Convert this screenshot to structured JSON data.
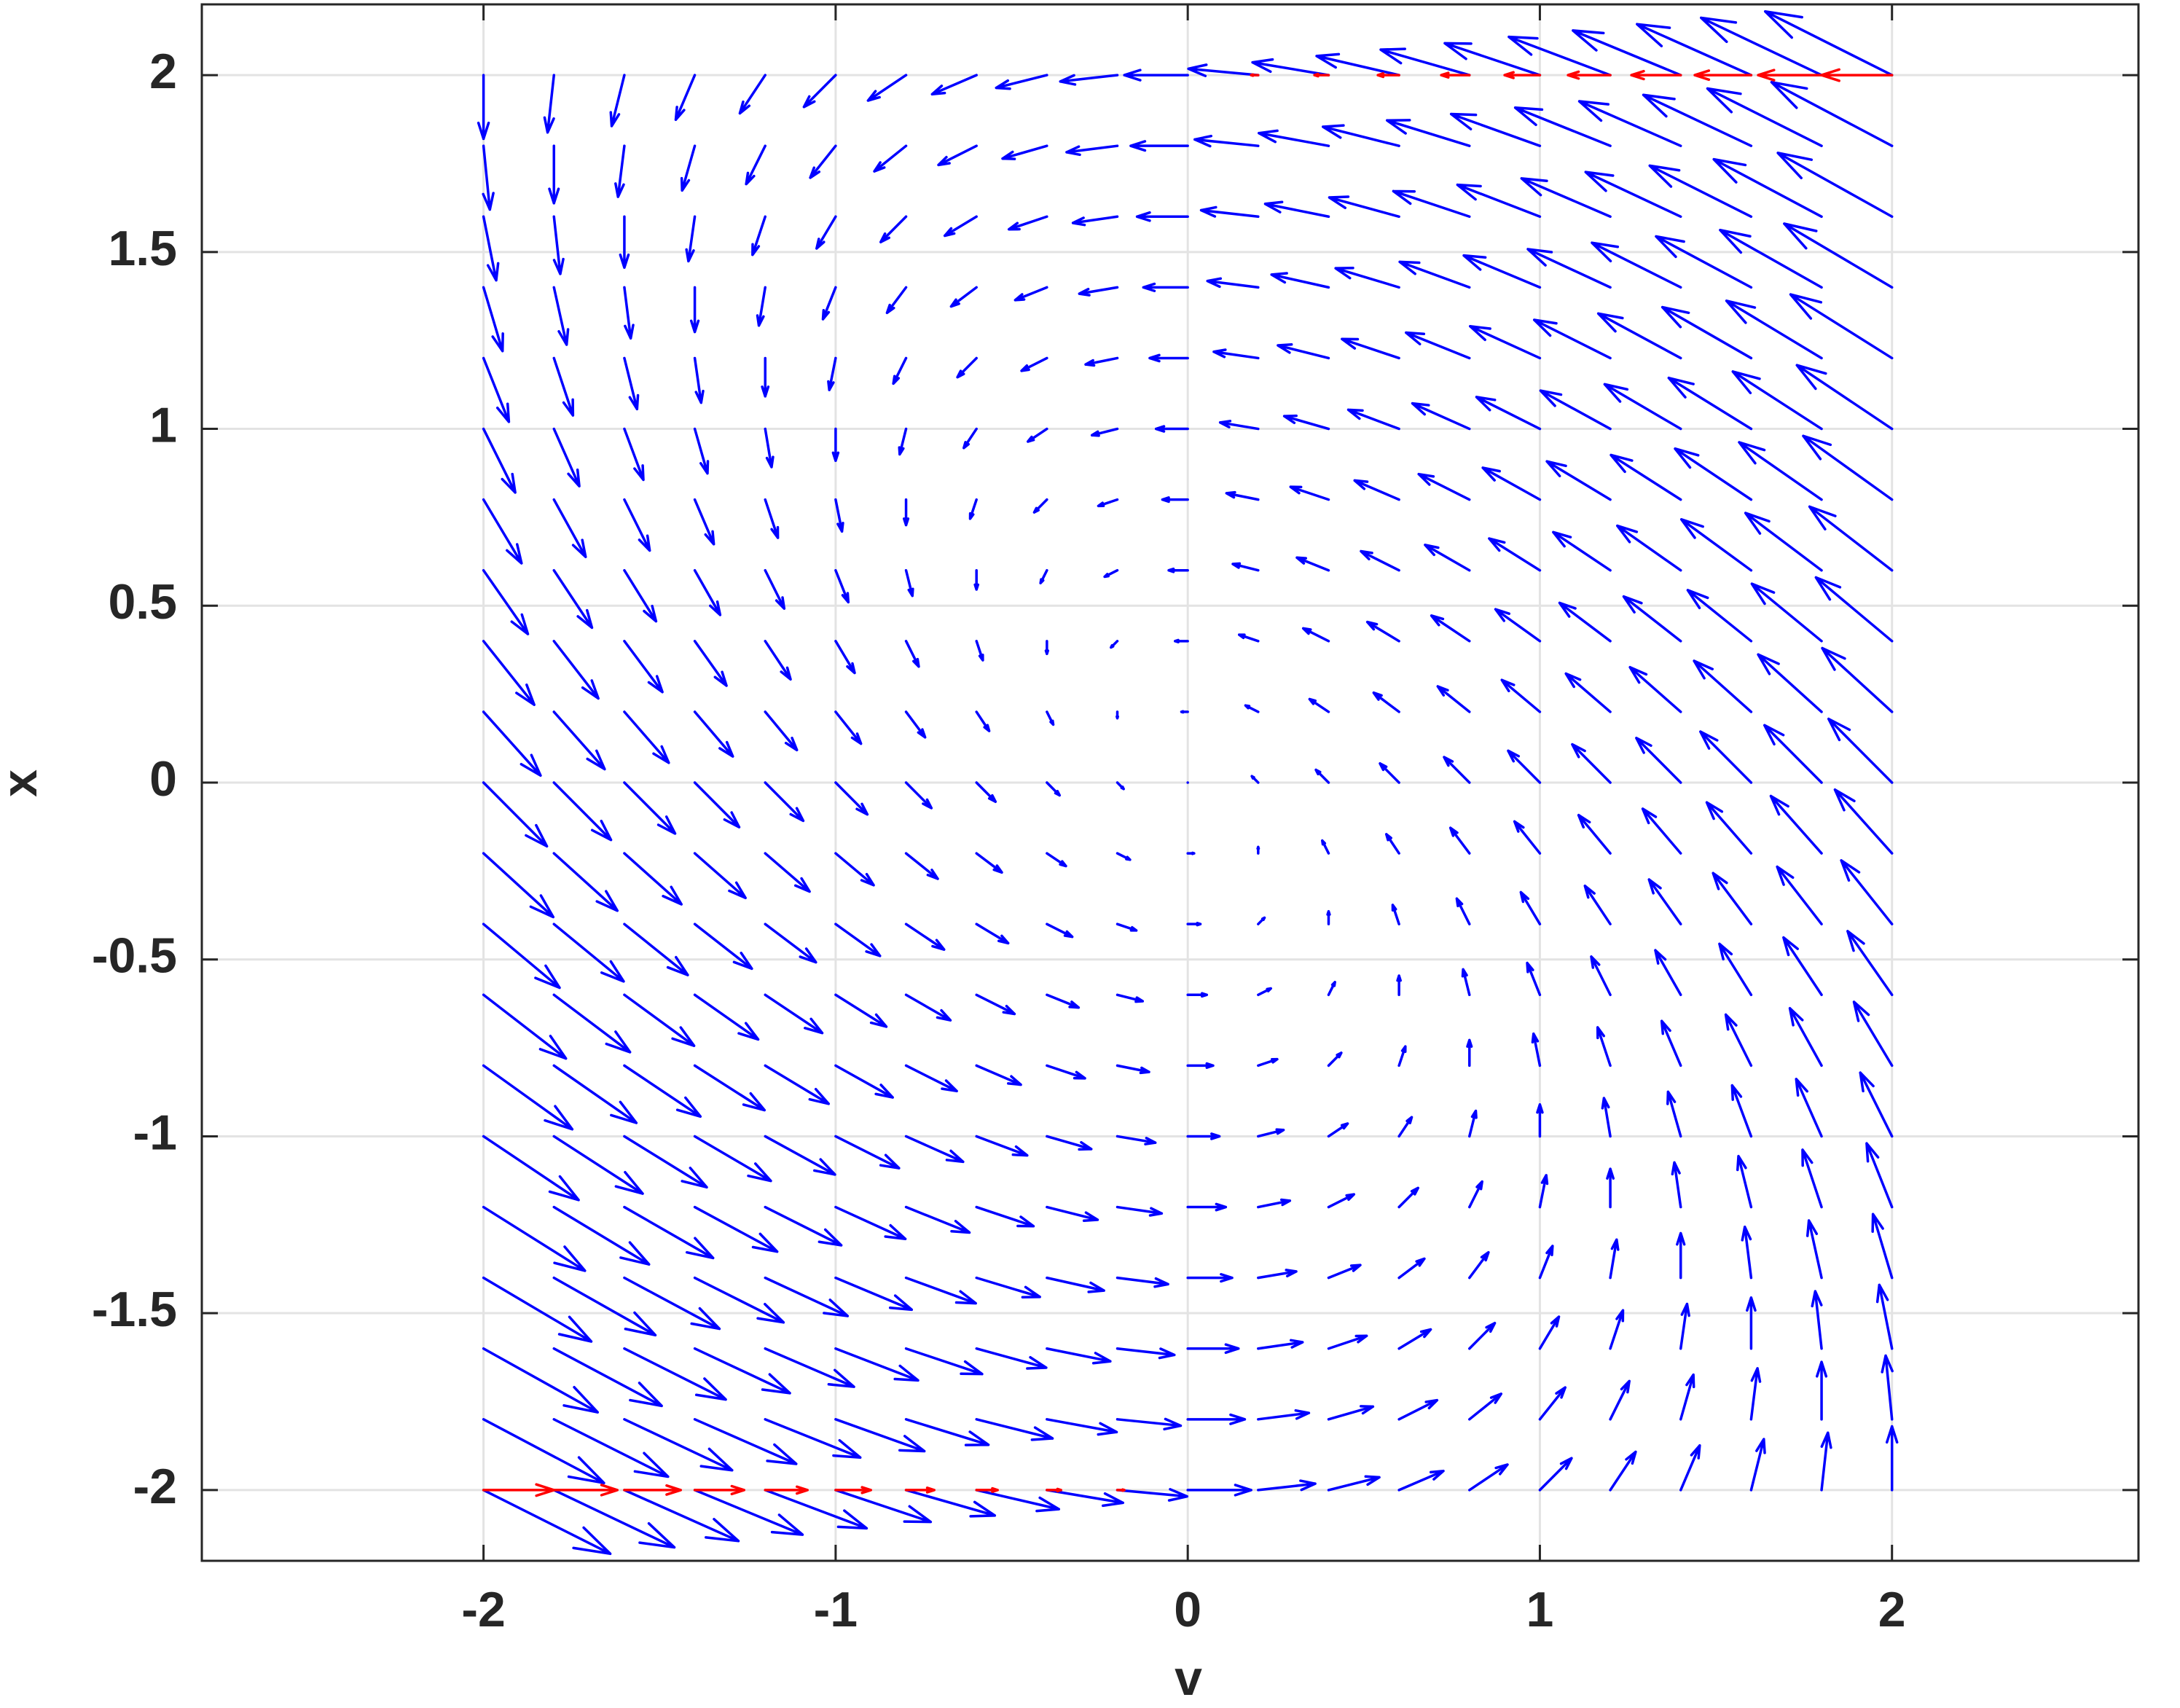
{
  "chart_data": {
    "type": "quiver",
    "xlabel": "v",
    "ylabel": "x",
    "xlim": [
      -2.8,
      2.7
    ],
    "ylim": [
      -2.2,
      2.2
    ],
    "xticks": [
      -2,
      -1,
      0,
      1,
      2
    ],
    "yticks": [
      -2,
      -1.5,
      -1,
      -0.5,
      0,
      0.5,
      1,
      1.5,
      2
    ],
    "grid": true,
    "series": [
      {
        "color": "#0000ff",
        "v": [
          -2,
          -1.8,
          -1.6,
          -1.4,
          -1.2,
          -1,
          -0.8,
          -0.6,
          -0.4,
          -0.2,
          0,
          0.2,
          0.4,
          0.6,
          0.8,
          1,
          1.2,
          1.4,
          1.6,
          1.8,
          2
        ],
        "x": [
          -2,
          -1.8,
          -1.6,
          -1.4,
          -1.2,
          -1,
          -0.8,
          -0.6,
          -0.4,
          -0.2,
          0,
          0.2,
          0.4,
          0.6,
          0.8,
          1,
          1.2,
          1.4,
          1.6,
          1.8,
          2
        ],
        "u": [
          [
            4,
            3.8,
            3.6,
            3.4,
            3.2,
            3,
            2.8,
            2.6,
            2.4,
            2.2,
            2,
            1.8,
            1.6,
            1.4,
            1.2,
            1,
            0.8,
            0.6,
            0.4,
            0.2,
            0
          ],
          [
            3.8,
            3.6,
            3.4,
            3.2,
            3,
            2.8,
            2.6,
            2.4,
            2.2,
            2,
            1.8,
            1.6,
            1.4,
            1.2,
            1,
            0.8,
            0.6,
            0.4,
            0.2,
            0,
            -0.2
          ],
          [
            3.6,
            3.4,
            3.2,
            3,
            2.8,
            2.6,
            2.4,
            2.2,
            2,
            1.8,
            1.6,
            1.4,
            1.2,
            1,
            0.8,
            0.6,
            0.4,
            0.2,
            0,
            -0.2,
            -0.4
          ],
          [
            3.4,
            3.2,
            3,
            2.8,
            2.6,
            2.4,
            2.2,
            2,
            1.8,
            1.6,
            1.4,
            1.2,
            1,
            0.8,
            0.6,
            0.4,
            0.2,
            0,
            -0.2,
            -0.4,
            -0.6
          ],
          [
            3.2,
            3,
            2.8,
            2.6,
            2.4,
            2.2,
            2,
            1.8,
            1.6,
            1.4,
            1.2,
            1,
            0.8,
            0.6,
            0.4,
            0.2,
            0,
            -0.2,
            -0.4,
            -0.6,
            -0.8
          ],
          [
            3,
            2.8,
            2.6,
            2.4,
            2.2,
            2,
            1.8,
            1.6,
            1.4,
            1.2,
            1,
            0.8,
            0.6,
            0.4,
            0.2,
            0,
            -0.2,
            -0.4,
            -0.6,
            -0.8,
            -1
          ],
          [
            2.8,
            2.6,
            2.4,
            2.2,
            2,
            1.8,
            1.6,
            1.4,
            1.2,
            1,
            0.8,
            0.6,
            0.4,
            0.2,
            0,
            -0.2,
            -0.4,
            -0.6,
            -0.8,
            -1,
            -1.2
          ],
          [
            2.6,
            2.4,
            2.2,
            2,
            1.8,
            1.6,
            1.4,
            1.2,
            1,
            0.8,
            0.6,
            0.4,
            0.2,
            0,
            -0.2,
            -0.4,
            -0.6,
            -0.8,
            -1,
            -1.2,
            -1.4
          ],
          [
            2.4,
            2.2,
            2,
            1.8,
            1.6,
            1.4,
            1.2,
            1,
            0.8,
            0.6,
            0.4,
            0.2,
            0,
            -0.2,
            -0.4,
            -0.6,
            -0.8,
            -1,
            -1.2,
            -1.4,
            -1.6
          ],
          [
            2.2,
            2,
            1.8,
            1.6,
            1.4,
            1.2,
            1,
            0.8,
            0.6,
            0.4,
            0.2,
            0,
            -0.2,
            -0.4,
            -0.6,
            -0.8,
            -1,
            -1.2,
            -1.4,
            -1.6,
            -1.8
          ],
          [
            2,
            1.8,
            1.6,
            1.4,
            1.2,
            1,
            0.8,
            0.6,
            0.4,
            0.2,
            0,
            -0.2,
            -0.4,
            -0.6,
            -0.8,
            -1,
            -1.2,
            -1.4,
            -1.6,
            -1.8,
            -2
          ],
          [
            1.8,
            1.6,
            1.4,
            1.2,
            1,
            0.8,
            0.6,
            0.4,
            0.2,
            0,
            -0.2,
            -0.4,
            -0.6,
            -0.8,
            -1,
            -1.2,
            -1.4,
            -1.6,
            -1.8,
            -2,
            -2.2
          ],
          [
            1.6,
            1.4,
            1.2,
            1,
            0.8,
            0.6,
            0.4,
            0.2,
            0,
            -0.2,
            -0.4,
            -0.6,
            -0.8,
            -1,
            -1.2,
            -1.4,
            -1.6,
            -1.8,
            -2,
            -2.2,
            -2.4
          ],
          [
            1.4,
            1.2,
            1,
            0.8,
            0.6,
            0.4,
            0.2,
            0,
            -0.2,
            -0.4,
            -0.6,
            -0.8,
            -1,
            -1.2,
            -1.4,
            -1.6,
            -1.8,
            -2,
            -2.2,
            -2.4,
            -2.6
          ],
          [
            1.2,
            1,
            0.8,
            0.6,
            0.4,
            0.2,
            0,
            -0.2,
            -0.4,
            -0.6,
            -0.8,
            -1,
            -1.2,
            -1.4,
            -1.6,
            -1.8,
            -2,
            -2.2,
            -2.4,
            -2.6,
            -2.8
          ],
          [
            1,
            0.8,
            0.6,
            0.4,
            0.2,
            0,
            -0.2,
            -0.4,
            -0.6,
            -0.8,
            -1,
            -1.2,
            -1.4,
            -1.6,
            -1.8,
            -2,
            -2.2,
            -2.4,
            -2.6,
            -2.8,
            -3
          ],
          [
            0.8,
            0.6,
            0.4,
            0.2,
            0,
            -0.2,
            -0.4,
            -0.6,
            -0.8,
            -1,
            -1.2,
            -1.4,
            -1.6,
            -1.8,
            -2,
            -2.2,
            -2.4,
            -2.6,
            -2.8,
            -3,
            -3.2
          ],
          [
            0.6,
            0.4,
            0.2,
            0,
            -0.2,
            -0.4,
            -0.6,
            -0.8,
            -1,
            -1.2,
            -1.4,
            -1.6,
            -1.8,
            -2,
            -2.2,
            -2.4,
            -2.6,
            -2.8,
            -3,
            -3.2,
            -3.4
          ],
          [
            0.4,
            0.2,
            0,
            -0.2,
            -0.4,
            -0.6,
            -0.8,
            -1,
            -1.2,
            -1.4,
            -1.6,
            -1.8,
            -2,
            -2.2,
            -2.4,
            -2.6,
            -2.8,
            -3,
            -3.2,
            -3.4,
            -3.6
          ],
          [
            0.2,
            0,
            -0.2,
            -0.4,
            -0.6,
            -0.8,
            -1,
            -1.2,
            -1.4,
            -1.6,
            -1.8,
            -2,
            -2.2,
            -2.4,
            -2.6,
            -2.8,
            -3,
            -3.2,
            -3.4,
            -3.6,
            -3.8
          ],
          [
            0,
            -0.2,
            -0.4,
            -0.6,
            -0.8,
            -1,
            -1.2,
            -1.4,
            -1.6,
            -1.8,
            -2,
            -2.2,
            -2.4,
            -2.6,
            -2.8,
            -3,
            -3.2,
            -3.4,
            -3.6,
            -3.8,
            -4
          ]
        ],
        "w": [
          [
            -2,
            -1.8,
            -1.6,
            -1.4,
            -1.2,
            -1,
            -0.8,
            -0.6,
            -0.4,
            -0.2,
            0,
            0.2,
            0.4,
            0.6,
            0.8,
            1,
            1.2,
            1.4,
            1.6,
            1.8,
            2
          ],
          [
            -2,
            -1.8,
            -1.6,
            -1.4,
            -1.2,
            -1,
            -0.8,
            -0.6,
            -0.4,
            -0.2,
            0,
            0.2,
            0.4,
            0.6,
            0.8,
            1,
            1.2,
            1.4,
            1.6,
            1.8,
            2
          ],
          [
            -2,
            -1.8,
            -1.6,
            -1.4,
            -1.2,
            -1,
            -0.8,
            -0.6,
            -0.4,
            -0.2,
            0,
            0.2,
            0.4,
            0.6,
            0.8,
            1,
            1.2,
            1.4,
            1.6,
            1.8,
            2
          ],
          [
            -2,
            -1.8,
            -1.6,
            -1.4,
            -1.2,
            -1,
            -0.8,
            -0.6,
            -0.4,
            -0.2,
            0,
            0.2,
            0.4,
            0.6,
            0.8,
            1,
            1.2,
            1.4,
            1.6,
            1.8,
            2
          ],
          [
            -2,
            -1.8,
            -1.6,
            -1.4,
            -1.2,
            -1,
            -0.8,
            -0.6,
            -0.4,
            -0.2,
            0,
            0.2,
            0.4,
            0.6,
            0.8,
            1,
            1.2,
            1.4,
            1.6,
            1.8,
            2
          ],
          [
            -2,
            -1.8,
            -1.6,
            -1.4,
            -1.2,
            -1,
            -0.8,
            -0.6,
            -0.4,
            -0.2,
            0,
            0.2,
            0.4,
            0.6,
            0.8,
            1,
            1.2,
            1.4,
            1.6,
            1.8,
            2
          ],
          [
            -2,
            -1.8,
            -1.6,
            -1.4,
            -1.2,
            -1,
            -0.8,
            -0.6,
            -0.4,
            -0.2,
            0,
            0.2,
            0.4,
            0.6,
            0.8,
            1,
            1.2,
            1.4,
            1.6,
            1.8,
            2
          ],
          [
            -2,
            -1.8,
            -1.6,
            -1.4,
            -1.2,
            -1,
            -0.8,
            -0.6,
            -0.4,
            -0.2,
            0,
            0.2,
            0.4,
            0.6,
            0.8,
            1,
            1.2,
            1.4,
            1.6,
            1.8,
            2
          ],
          [
            -2,
            -1.8,
            -1.6,
            -1.4,
            -1.2,
            -1,
            -0.8,
            -0.6,
            -0.4,
            -0.2,
            0,
            0.2,
            0.4,
            0.6,
            0.8,
            1,
            1.2,
            1.4,
            1.6,
            1.8,
            2
          ],
          [
            -2,
            -1.8,
            -1.6,
            -1.4,
            -1.2,
            -1,
            -0.8,
            -0.6,
            -0.4,
            -0.2,
            0,
            0.2,
            0.4,
            0.6,
            0.8,
            1,
            1.2,
            1.4,
            1.6,
            1.8,
            2
          ],
          [
            -2,
            -1.8,
            -1.6,
            -1.4,
            -1.2,
            -1,
            -0.8,
            -0.6,
            -0.4,
            -0.2,
            0,
            0.2,
            0.4,
            0.6,
            0.8,
            1,
            1.2,
            1.4,
            1.6,
            1.8,
            2
          ],
          [
            -2,
            -1.8,
            -1.6,
            -1.4,
            -1.2,
            -1,
            -0.8,
            -0.6,
            -0.4,
            -0.2,
            0,
            0.2,
            0.4,
            0.6,
            0.8,
            1,
            1.2,
            1.4,
            1.6,
            1.8,
            2
          ],
          [
            -2,
            -1.8,
            -1.6,
            -1.4,
            -1.2,
            -1,
            -0.8,
            -0.6,
            -0.4,
            -0.2,
            0,
            0.2,
            0.4,
            0.6,
            0.8,
            1,
            1.2,
            1.4,
            1.6,
            1.8,
            2
          ],
          [
            -2,
            -1.8,
            -1.6,
            -1.4,
            -1.2,
            -1,
            -0.8,
            -0.6,
            -0.4,
            -0.2,
            0,
            0.2,
            0.4,
            0.6,
            0.8,
            1,
            1.2,
            1.4,
            1.6,
            1.8,
            2
          ],
          [
            -2,
            -1.8,
            -1.6,
            -1.4,
            -1.2,
            -1,
            -0.8,
            -0.6,
            -0.4,
            -0.2,
            0,
            0.2,
            0.4,
            0.6,
            0.8,
            1,
            1.2,
            1.4,
            1.6,
            1.8,
            2
          ],
          [
            -2,
            -1.8,
            -1.6,
            -1.4,
            -1.2,
            -1,
            -0.8,
            -0.6,
            -0.4,
            -0.2,
            0,
            0.2,
            0.4,
            0.6,
            0.8,
            1,
            1.2,
            1.4,
            1.6,
            1.8,
            2
          ],
          [
            -2,
            -1.8,
            -1.6,
            -1.4,
            -1.2,
            -1,
            -0.8,
            -0.6,
            -0.4,
            -0.2,
            0,
            0.2,
            0.4,
            0.6,
            0.8,
            1,
            1.2,
            1.4,
            1.6,
            1.8,
            2
          ],
          [
            -2,
            -1.8,
            -1.6,
            -1.4,
            -1.2,
            -1,
            -0.8,
            -0.6,
            -0.4,
            -0.2,
            0,
            0.2,
            0.4,
            0.6,
            0.8,
            1,
            1.2,
            1.4,
            1.6,
            1.8,
            2
          ],
          [
            -2,
            -1.8,
            -1.6,
            -1.4,
            -1.2,
            -1,
            -0.8,
            -0.6,
            -0.4,
            -0.2,
            0,
            0.2,
            0.4,
            0.6,
            0.8,
            1,
            1.2,
            1.4,
            1.6,
            1.8,
            2
          ],
          [
            -2,
            -1.8,
            -1.6,
            -1.4,
            -1.2,
            -1,
            -0.8,
            -0.6,
            -0.4,
            -0.2,
            0,
            0.2,
            0.4,
            0.6,
            0.8,
            1,
            1.2,
            1.4,
            1.6,
            1.8,
            2
          ],
          [
            -2,
            -1.8,
            -1.6,
            -1.4,
            -1.2,
            -1,
            -0.8,
            -0.6,
            -0.4,
            -0.2,
            0,
            0.2,
            0.4,
            0.6,
            0.8,
            1,
            1.2,
            1.4,
            1.6,
            1.8,
            2
          ]
        ]
      },
      {
        "color": "#ff0000",
        "v": [
          0.2,
          0.4,
          0.6,
          0.8,
          1,
          1.2,
          1.4,
          1.6,
          1.8,
          2,
          -2,
          -1.8,
          -1.6,
          -1.4,
          -1.2,
          -1,
          -0.8,
          -0.6,
          -0.4,
          -0.2
        ],
        "x": [
          2,
          2,
          2,
          2,
          2,
          2,
          2,
          2,
          2,
          2,
          -2,
          -2,
          -2,
          -2,
          -2,
          -2,
          -2,
          -2,
          -2,
          -2
        ],
        "u": [
          -0.2,
          -0.4,
          -0.6,
          -0.8,
          -1,
          -1.2,
          -1.4,
          -1.6,
          -1.8,
          -2,
          2,
          1.8,
          1.6,
          1.4,
          1.2,
          1,
          0.8,
          0.6,
          0.4,
          0.2
        ],
        "w": [
          0,
          0,
          0,
          0,
          0,
          0,
          0,
          0,
          0,
          0,
          0,
          0,
          0,
          0,
          0,
          0,
          0,
          0,
          0,
          0
        ]
      }
    ]
  }
}
